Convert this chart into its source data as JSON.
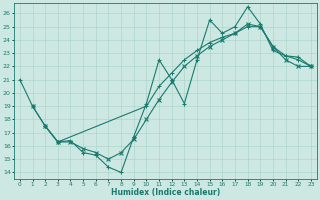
{
  "xlabel": "Humidex (Indice chaleur)",
  "bg_color": "#cde8e2",
  "line_color": "#1a7a6e",
  "grid_color": "#aed4cc",
  "xlim": [
    -0.5,
    23.5
  ],
  "ylim": [
    13.5,
    26.8
  ],
  "yticks": [
    14,
    15,
    16,
    17,
    18,
    19,
    20,
    21,
    22,
    23,
    24,
    25,
    26
  ],
  "xticks": [
    0,
    1,
    2,
    3,
    4,
    5,
    6,
    7,
    8,
    9,
    10,
    11,
    12,
    13,
    14,
    15,
    16,
    17,
    18,
    19,
    20,
    21,
    22,
    23
  ],
  "line1_x": [
    0,
    1,
    2,
    3,
    4,
    5,
    6,
    7,
    8,
    9,
    10,
    11,
    12,
    13,
    14,
    15,
    16,
    17,
    18,
    19,
    20,
    21,
    22,
    23
  ],
  "line1_y": [
    21.0,
    19.0,
    17.5,
    16.3,
    16.4,
    15.5,
    15.3,
    14.4,
    14.0,
    16.7,
    19.2,
    22.5,
    21.0,
    19.2,
    22.5,
    25.5,
    24.5,
    25.0,
    26.5,
    25.2,
    23.2,
    22.8,
    22.7,
    22.0
  ],
  "line2_x": [
    1,
    2,
    3,
    4,
    5,
    6,
    7,
    8,
    9,
    10,
    11,
    12,
    13,
    14,
    15,
    16,
    17,
    18,
    19,
    20,
    21,
    22,
    23
  ],
  "line2_y": [
    19.0,
    17.5,
    16.3,
    16.3,
    15.8,
    15.5,
    15.0,
    15.5,
    16.5,
    18.0,
    19.5,
    20.8,
    22.0,
    22.8,
    23.5,
    24.0,
    24.5,
    25.2,
    25.0,
    23.5,
    22.5,
    22.0,
    22.0
  ],
  "line3_x": [
    2,
    3,
    10,
    11,
    12,
    13,
    14,
    15,
    16,
    17,
    18,
    19,
    20,
    21,
    22,
    23
  ],
  "line3_y": [
    17.5,
    16.3,
    19.0,
    20.5,
    21.5,
    22.5,
    23.2,
    23.8,
    24.2,
    24.5,
    25.0,
    25.0,
    23.5,
    22.8,
    22.5,
    22.0
  ]
}
